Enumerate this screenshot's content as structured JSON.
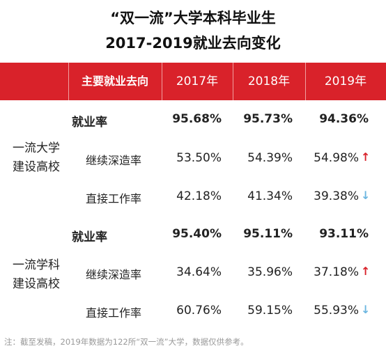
{
  "title": {
    "line1": "“双一流”大学本科毕业生",
    "line2": "2017-2019就业去向变化"
  },
  "colors": {
    "header_bg": "#d9222a",
    "up_arrow": "#d9222a",
    "down_arrow": "#6cb6e0"
  },
  "table": {
    "header": [
      "主要就业去向",
      "2017年",
      "2018年",
      "2019年"
    ],
    "groups": [
      {
        "label_line1": "一流大学",
        "label_line2": "建设高校",
        "rows": [
          {
            "label": "就业率",
            "values": [
              "95.68%",
              "95.73%",
              "94.36%"
            ],
            "arrow": ""
          },
          {
            "label": "继续深造率",
            "values": [
              "53.50%",
              "54.39%",
              "54.98%"
            ],
            "arrow": "↑"
          },
          {
            "label": "直接工作率",
            "values": [
              "42.18%",
              "41.34%",
              "39.38%"
            ],
            "arrow": "↓"
          }
        ]
      },
      {
        "label_line1": "一流学科",
        "label_line2": "建设高校",
        "rows": [
          {
            "label": "就业率",
            "values": [
              "95.40%",
              "95.11%",
              "93.11%"
            ],
            "arrow": ""
          },
          {
            "label": "继续深造率",
            "values": [
              "34.64%",
              "35.96%",
              "37.18%"
            ],
            "arrow": "↑"
          },
          {
            "label": "直接工作率",
            "values": [
              "60.76%",
              "59.15%",
              "55.93%"
            ],
            "arrow": "↓"
          }
        ]
      }
    ]
  },
  "note": "注：截至发稿，2019年数据为122所“双一流”大学，数据仅供参考。"
}
